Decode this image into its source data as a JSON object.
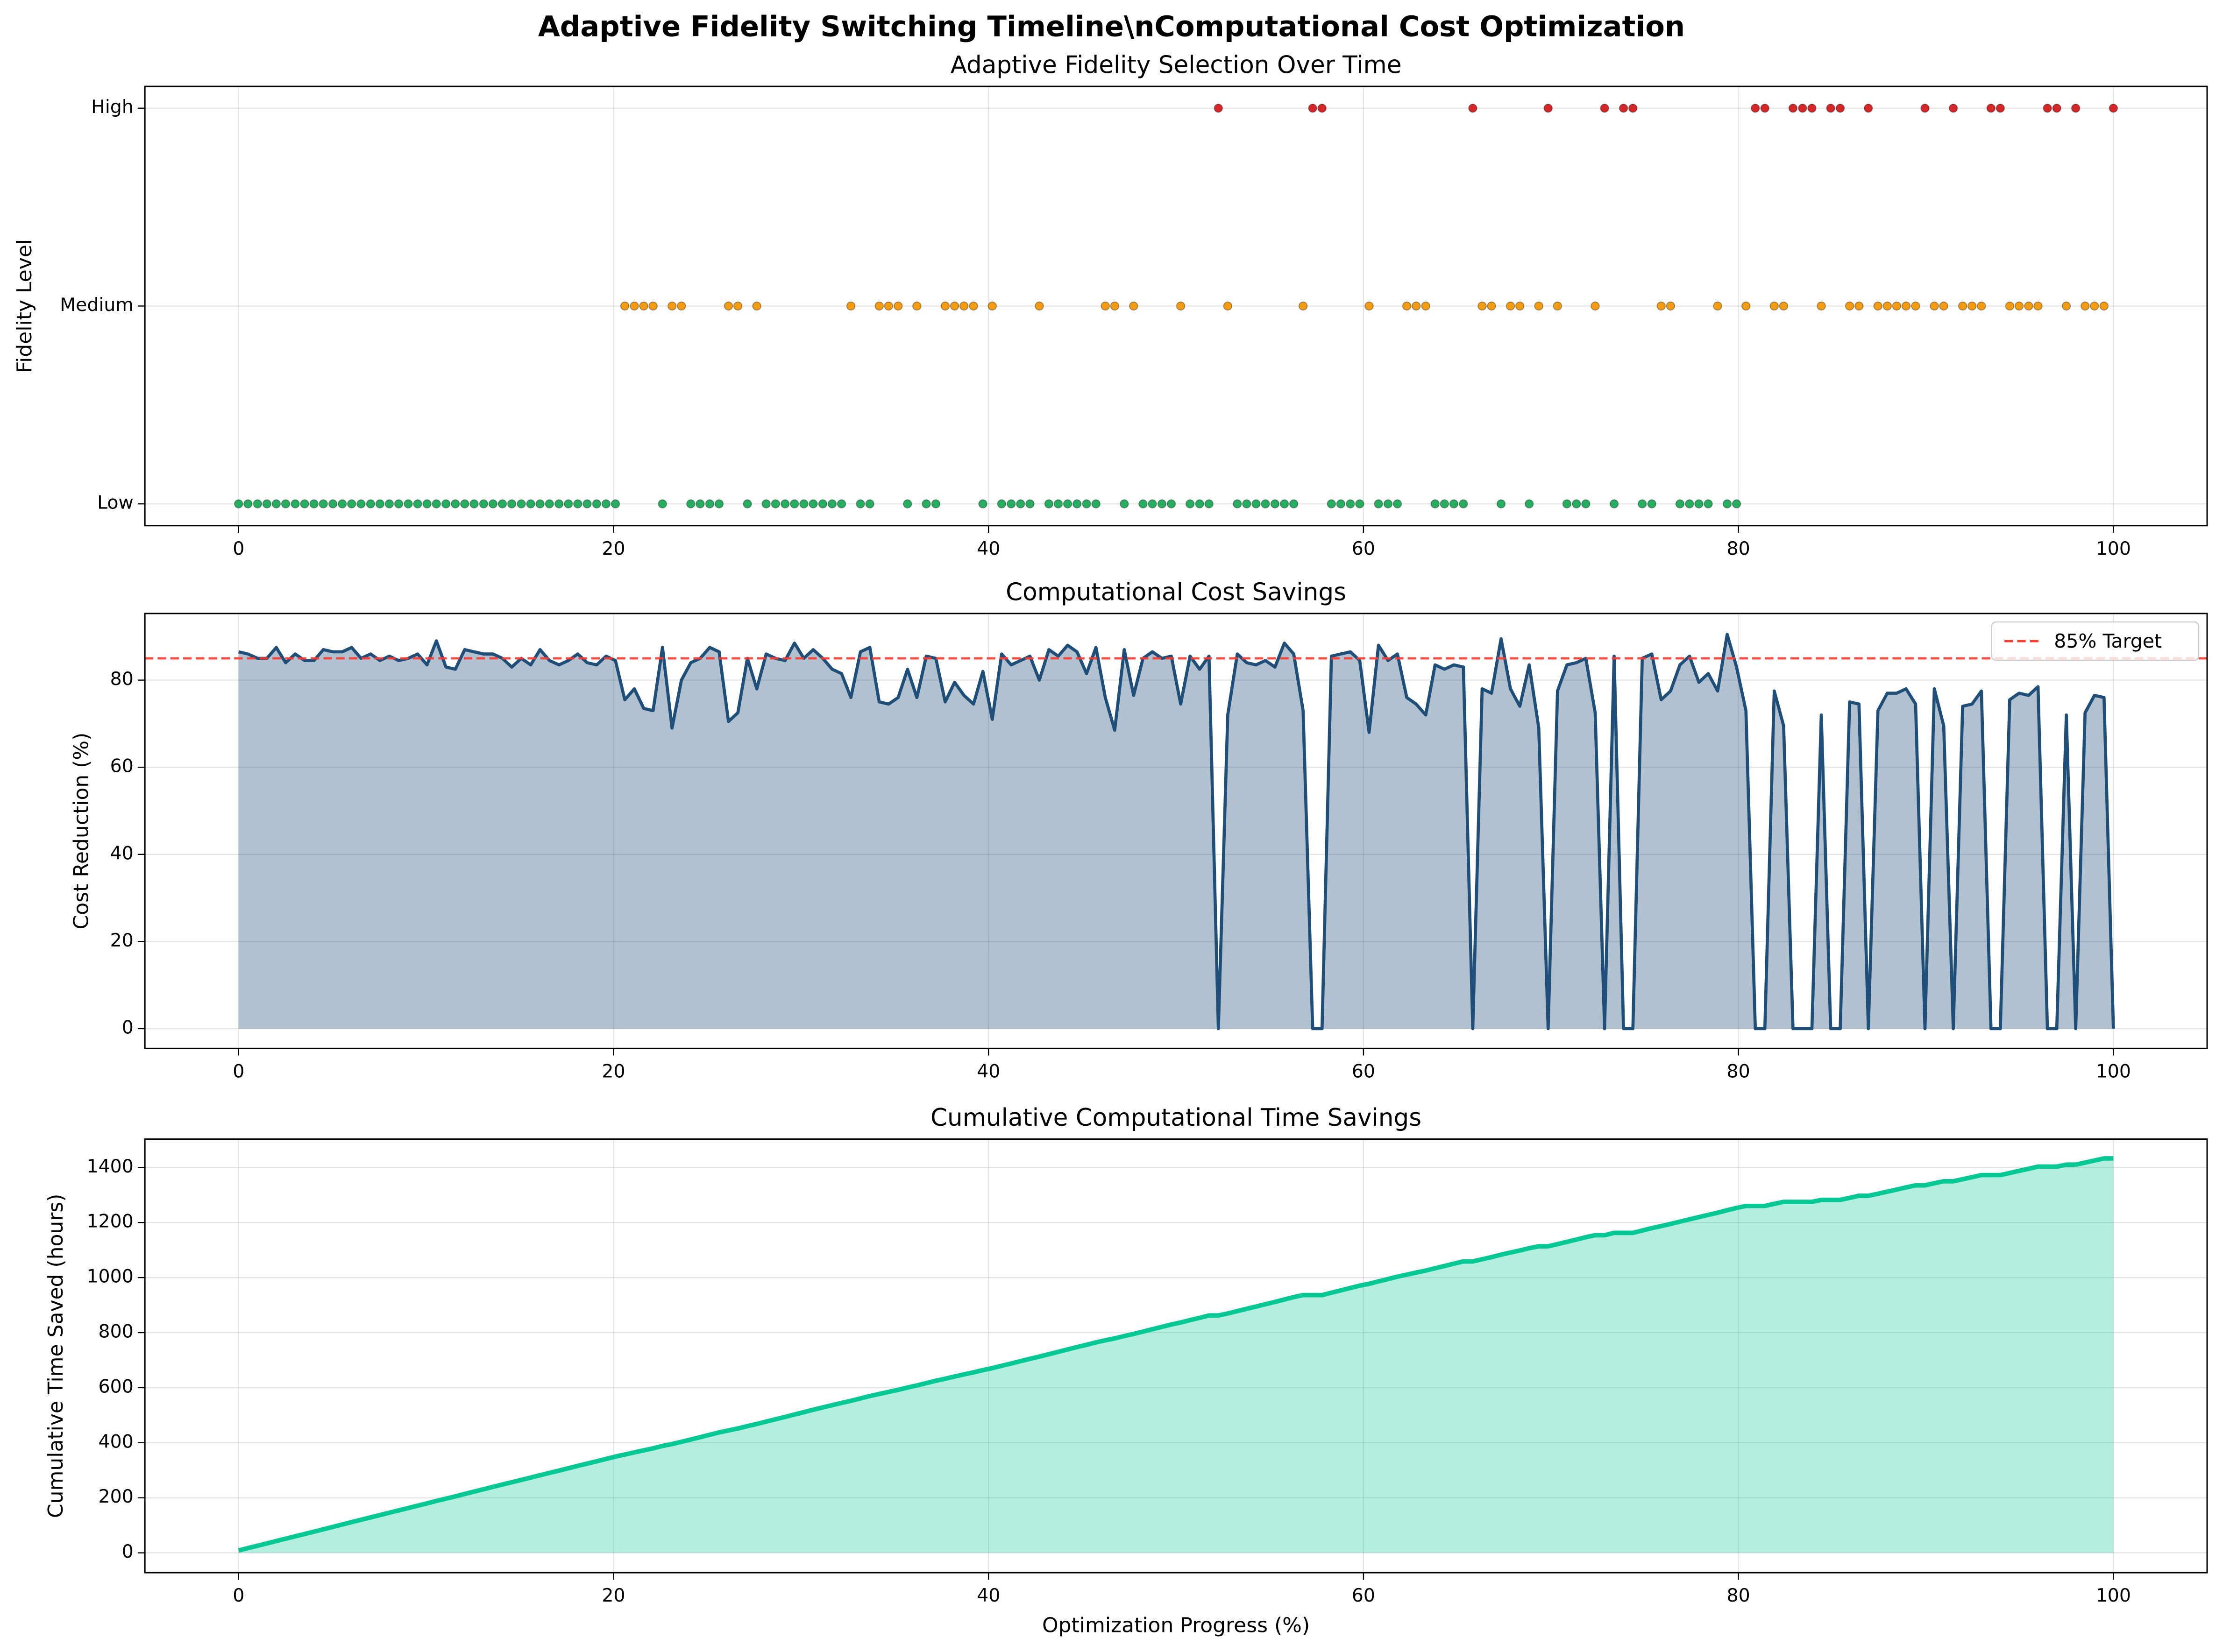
{
  "title": "Adaptive Fidelity Switching Timeline\\nComputational Cost Optimization",
  "chart_data": [
    {
      "type": "scatter",
      "title": "Adaptive Fidelity Selection Over Time",
      "ylabel": "Fidelity Level",
      "x": [
        0,
        0.5,
        1.01,
        1.51,
        2.01,
        2.51,
        3.02,
        3.52,
        4.02,
        4.52,
        5.03,
        5.53,
        6.03,
        6.53,
        7.04,
        7.54,
        8.04,
        8.54,
        9.05,
        9.55,
        10.05,
        10.55,
        11.06,
        11.56,
        12.06,
        12.56,
        13.07,
        13.57,
        14.07,
        14.57,
        15.08,
        15.58,
        16.08,
        16.58,
        17.09,
        17.59,
        18.09,
        18.59,
        19.1,
        19.6,
        20.1,
        20.6,
        21.11,
        21.61,
        22.11,
        22.61,
        23.12,
        23.62,
        24.12,
        24.62,
        25.13,
        25.63,
        26.13,
        26.63,
        27.14,
        27.64,
        28.14,
        28.64,
        29.15,
        29.65,
        30.15,
        30.65,
        31.16,
        31.66,
        32.16,
        32.66,
        33.17,
        33.67,
        34.17,
        34.67,
        35.18,
        35.68,
        36.18,
        36.68,
        37.19,
        37.69,
        38.19,
        38.69,
        39.2,
        39.7,
        40.2,
        40.7,
        41.21,
        41.71,
        42.21,
        42.71,
        43.22,
        43.72,
        44.22,
        44.72,
        45.23,
        45.73,
        46.23,
        46.73,
        47.24,
        47.74,
        48.24,
        48.74,
        49.25,
        49.75,
        50.25,
        50.75,
        51.26,
        51.76,
        52.26,
        52.76,
        53.27,
        53.77,
        54.27,
        54.77,
        55.28,
        55.78,
        56.28,
        56.78,
        57.29,
        57.79,
        58.29,
        58.79,
        59.3,
        59.8,
        60.3,
        60.8,
        61.31,
        61.81,
        62.31,
        62.81,
        63.32,
        63.82,
        64.32,
        64.82,
        65.33,
        65.83,
        66.33,
        66.83,
        67.34,
        67.84,
        68.34,
        68.84,
        69.35,
        69.85,
        70.35,
        70.85,
        71.36,
        71.86,
        72.36,
        72.86,
        73.37,
        73.87,
        74.37,
        74.87,
        75.38,
        75.88,
        76.38,
        76.88,
        77.39,
        77.89,
        78.39,
        78.89,
        79.4,
        79.9,
        80.4,
        80.9,
        81.41,
        81.91,
        82.41,
        82.91,
        83.42,
        83.92,
        84.42,
        84.92,
        85.43,
        85.93,
        86.43,
        86.93,
        87.44,
        87.94,
        88.44,
        88.94,
        89.45,
        89.95,
        90.45,
        90.95,
        91.46,
        91.96,
        92.46,
        92.96,
        93.47,
        93.97,
        94.47,
        94.97,
        95.48,
        95.98,
        96.48,
        96.98,
        97.49,
        97.99,
        98.49,
        98.99,
        99.5,
        100
      ],
      "values": [
        0,
        0,
        0,
        0,
        0,
        0,
        0,
        0,
        0,
        0,
        0,
        0,
        0,
        0,
        0,
        0,
        0,
        0,
        0,
        0,
        0,
        0,
        0,
        0,
        0,
        0,
        0,
        0,
        0,
        0,
        0,
        0,
        0,
        0,
        0,
        0,
        0,
        0,
        0,
        0,
        0,
        1,
        1,
        1,
        1,
        0,
        1,
        1,
        0,
        0,
        0,
        0,
        1,
        1,
        0,
        1,
        0,
        0,
        0,
        0,
        0,
        0,
        0,
        0,
        0,
        1,
        0,
        0,
        1,
        1,
        1,
        0,
        1,
        0,
        0,
        1,
        1,
        1,
        1,
        0,
        1,
        0,
        0,
        0,
        0,
        1,
        0,
        0,
        0,
        0,
        0,
        0,
        1,
        1,
        0,
        1,
        0,
        0,
        0,
        0,
        1,
        0,
        0,
        0,
        2,
        1,
        0,
        0,
        0,
        0,
        0,
        0,
        0,
        1,
        2,
        2,
        0,
        0,
        0,
        0,
        1,
        0,
        0,
        0,
        1,
        1,
        1,
        0,
        0,
        0,
        0,
        2,
        1,
        1,
        0,
        1,
        1,
        0,
        1,
        2,
        1,
        0,
        0,
        0,
        1,
        2,
        0,
        2,
        2,
        0,
        0,
        1,
        1,
        0,
        0,
        0,
        0,
        1,
        0,
        0,
        1,
        2,
        2,
        1,
        1,
        2,
        2,
        2,
        1,
        2,
        2,
        1,
        1,
        2,
        1,
        1,
        1,
        1,
        1,
        2,
        1,
        1,
        2,
        1,
        1,
        1,
        2,
        2,
        1,
        1,
        1,
        1,
        2,
        2,
        1,
        2,
        1,
        1,
        1,
        2
      ],
      "level_colors": [
        "#27ae60",
        "#f39c12",
        "#d62728"
      ],
      "xlim": [
        -5,
        105
      ],
      "xticks": [
        0,
        20,
        40,
        60,
        80,
        100
      ],
      "ylim": [
        -0.11,
        2.11
      ],
      "yticks": [
        {
          "value": 0,
          "label": "Low"
        },
        {
          "value": 1,
          "label": "Medium"
        },
        {
          "value": 2,
          "label": "High"
        }
      ],
      "grid": true
    },
    {
      "type": "area",
      "title": "Computational Cost Savings",
      "ylabel": "Cost Reduction (%)",
      "x": [
        0,
        0.5,
        1.01,
        1.51,
        2.01,
        2.51,
        3.02,
        3.52,
        4.02,
        4.52,
        5.03,
        5.53,
        6.03,
        6.53,
        7.04,
        7.54,
        8.04,
        8.54,
        9.05,
        9.55,
        10.05,
        10.55,
        11.06,
        11.56,
        12.06,
        12.56,
        13.07,
        13.57,
        14.07,
        14.57,
        15.08,
        15.58,
        16.08,
        16.58,
        17.09,
        17.59,
        18.09,
        18.59,
        19.1,
        19.6,
        20.1,
        20.6,
        21.11,
        21.61,
        22.11,
        22.61,
        23.12,
        23.62,
        24.12,
        24.62,
        25.13,
        25.63,
        26.13,
        26.63,
        27.14,
        27.64,
        28.14,
        28.64,
        29.15,
        29.65,
        30.15,
        30.65,
        31.16,
        31.66,
        32.16,
        32.66,
        33.17,
        33.67,
        34.17,
        34.67,
        35.18,
        35.68,
        36.18,
        36.68,
        37.19,
        37.69,
        38.19,
        38.69,
        39.2,
        39.7,
        40.2,
        40.7,
        41.21,
        41.71,
        42.21,
        42.71,
        43.22,
        43.72,
        44.22,
        44.72,
        45.23,
        45.73,
        46.23,
        46.73,
        47.24,
        47.74,
        48.24,
        48.74,
        49.25,
        49.75,
        50.25,
        50.75,
        51.26,
        51.76,
        52.26,
        52.76,
        53.27,
        53.77,
        54.27,
        54.77,
        55.28,
        55.78,
        56.28,
        56.78,
        57.29,
        57.79,
        58.29,
        58.79,
        59.3,
        59.8,
        60.3,
        60.8,
        61.31,
        61.81,
        62.31,
        62.81,
        63.32,
        63.82,
        64.32,
        64.82,
        65.33,
        65.83,
        66.33,
        66.83,
        67.34,
        67.84,
        68.34,
        68.84,
        69.35,
        69.85,
        70.35,
        70.85,
        71.36,
        71.86,
        72.36,
        72.86,
        73.37,
        73.87,
        74.37,
        74.87,
        75.38,
        75.88,
        76.38,
        76.88,
        77.39,
        77.89,
        78.39,
        78.89,
        79.4,
        79.9,
        80.4,
        80.9,
        81.41,
        81.91,
        82.41,
        82.91,
        83.42,
        83.92,
        84.42,
        84.92,
        85.43,
        85.93,
        86.43,
        86.93,
        87.44,
        87.94,
        88.44,
        88.94,
        89.45,
        89.95,
        90.45,
        90.95,
        91.46,
        91.96,
        92.46,
        92.96,
        93.47,
        93.97,
        94.47,
        94.97,
        95.48,
        95.98,
        96.48,
        96.98,
        97.49,
        97.99,
        98.49,
        98.99,
        99.5,
        100
      ],
      "values": [
        86.5,
        86,
        85,
        85,
        87.5,
        84,
        86,
        84.5,
        84.5,
        87,
        86.5,
        86.5,
        87.5,
        85,
        86,
        84.5,
        85.5,
        84.5,
        85,
        86,
        83.5,
        89,
        83,
        82.5,
        87,
        86.5,
        86,
        86,
        85,
        83,
        85,
        83.5,
        87,
        84.5,
        83.5,
        84.5,
        86,
        84,
        83.5,
        85.5,
        84.5,
        75.5,
        78,
        73.5,
        73,
        87.5,
        69,
        80,
        84,
        85,
        87.5,
        86.5,
        70.5,
        72.5,
        85,
        78,
        86,
        85,
        84.5,
        88.5,
        85,
        87,
        85,
        82.5,
        81.5,
        76,
        86.5,
        87.5,
        75,
        74.5,
        76,
        82.5,
        76,
        85.5,
        85,
        75,
        79.5,
        76.5,
        74.5,
        82,
        71,
        86,
        83.5,
        84.5,
        85.5,
        80,
        87,
        85.5,
        88,
        86.5,
        81.5,
        87.5,
        76,
        68.5,
        87,
        76.5,
        85,
        86.5,
        85,
        85.5,
        74.5,
        85.5,
        82.5,
        85.5,
        0,
        72,
        86,
        84,
        83.5,
        84.5,
        83,
        88.5,
        86,
        73,
        0,
        0,
        85.5,
        86,
        86.5,
        84.5,
        68,
        88,
        84.5,
        86,
        76,
        74.5,
        72,
        83.5,
        82.5,
        83.5,
        83,
        0,
        78,
        77,
        89.5,
        78,
        74,
        83.5,
        69,
        0,
        77.5,
        83.5,
        84,
        85,
        72.5,
        0,
        85.5,
        0,
        0,
        85,
        86,
        75.5,
        77.5,
        83.5,
        85.5,
        79.5,
        81.5,
        77.5,
        90.5,
        83,
        73,
        0,
        0,
        77.5,
        69.5,
        0,
        0,
        0,
        72,
        0,
        0,
        75,
        74.5,
        0,
        73,
        77,
        77,
        78,
        74.5,
        0,
        78,
        69.5,
        0,
        74,
        74.5,
        77.5,
        0,
        0,
        75.5,
        77,
        76.5,
        78.5,
        0,
        0,
        72,
        0,
        72.5,
        76.5,
        76,
        0
      ],
      "color": "#1f4e79",
      "target": 85,
      "target_label": "85% Target",
      "target_color": "#ff3b30",
      "legend": "upper right",
      "xlim": [
        -5,
        105
      ],
      "xticks": [
        0,
        20,
        40,
        60,
        80,
        100
      ],
      "ylim": [
        -4.55,
        95.3
      ],
      "yticks": [
        0,
        20,
        40,
        60,
        80
      ],
      "grid": true
    },
    {
      "type": "area",
      "title": "Cumulative Computational Time Savings",
      "xlabel": "Optimization Progress (%)",
      "ylabel": "Cumulative Time Saved (hours)",
      "x": [
        0,
        0.5,
        1.01,
        1.51,
        2.01,
        2.51,
        3.02,
        3.52,
        4.02,
        4.52,
        5.03,
        5.53,
        6.03,
        6.53,
        7.04,
        7.54,
        8.04,
        8.54,
        9.05,
        9.55,
        10.05,
        10.55,
        11.06,
        11.56,
        12.06,
        12.56,
        13.07,
        13.57,
        14.07,
        14.57,
        15.08,
        15.58,
        16.08,
        16.58,
        17.09,
        17.59,
        18.09,
        18.59,
        19.1,
        19.6,
        20.1,
        20.6,
        21.11,
        21.61,
        22.11,
        22.61,
        23.12,
        23.62,
        24.12,
        24.62,
        25.13,
        25.63,
        26.13,
        26.63,
        27.14,
        27.64,
        28.14,
        28.64,
        29.15,
        29.65,
        30.15,
        30.65,
        31.16,
        31.66,
        32.16,
        32.66,
        33.17,
        33.67,
        34.17,
        34.67,
        35.18,
        35.68,
        36.18,
        36.68,
        37.19,
        37.69,
        38.19,
        38.69,
        39.2,
        39.7,
        40.2,
        40.7,
        41.21,
        41.71,
        42.21,
        42.71,
        43.22,
        43.72,
        44.22,
        44.72,
        45.23,
        45.73,
        46.23,
        46.73,
        47.24,
        47.74,
        48.24,
        48.74,
        49.25,
        49.75,
        50.25,
        50.75,
        51.26,
        51.76,
        52.26,
        52.76,
        53.27,
        53.77,
        54.27,
        54.77,
        55.28,
        55.78,
        56.28,
        56.78,
        57.29,
        57.79,
        58.29,
        58.79,
        59.3,
        59.8,
        60.3,
        60.8,
        61.31,
        61.81,
        62.31,
        62.81,
        63.32,
        63.82,
        64.32,
        64.82,
        65.33,
        65.83,
        66.33,
        66.83,
        67.34,
        67.84,
        68.34,
        68.84,
        69.35,
        69.85,
        70.35,
        70.85,
        71.36,
        71.86,
        72.36,
        72.86,
        73.37,
        73.87,
        74.37,
        74.87,
        75.38,
        75.88,
        76.38,
        76.88,
        77.39,
        77.89,
        78.39,
        78.89,
        79.4,
        79.9,
        80.4,
        80.9,
        81.41,
        81.91,
        82.41,
        82.91,
        83.42,
        83.92,
        84.42,
        84.92,
        85.43,
        85.93,
        86.43,
        86.93,
        87.44,
        87.94,
        88.44,
        88.94,
        89.45,
        89.95,
        90.45,
        90.95,
        91.46,
        91.96,
        92.46,
        92.96,
        93.47,
        93.97,
        94.47,
        94.97,
        95.48,
        95.98,
        96.48,
        96.98,
        97.49,
        97.99,
        98.49,
        98.99,
        99.5,
        100
      ],
      "values": [
        8.65,
        17.25,
        25.75,
        34.25,
        43,
        51.4,
        60,
        68.45,
        76.9,
        85.6,
        94.25,
        102.9,
        111.65,
        120.15,
        128.75,
        137.2,
        145.75,
        154.2,
        162.7,
        171.3,
        179.65,
        188.55,
        196.85,
        205.1,
        213.8,
        222.45,
        231.05,
        239.65,
        248.15,
        256.45,
        264.95,
        273.3,
        282,
        290.45,
        298.8,
        307.25,
        315.85,
        324.25,
        332.6,
        341.15,
        349.6,
        357.15,
        364.95,
        372.3,
        379.6,
        388.35,
        395.25,
        403.25,
        411.65,
        420.15,
        428.9,
        437.55,
        444.6,
        451.85,
        460.35,
        468.15,
        476.75,
        485.25,
        493.7,
        502.55,
        511.05,
        519.75,
        528.25,
        536.5,
        544.65,
        552.25,
        560.9,
        569.65,
        577.15,
        584.6,
        592.2,
        600.45,
        608.05,
        616.6,
        625.1,
        632.6,
        640.55,
        648.2,
        655.65,
        663.85,
        670.95,
        679.55,
        687.9,
        696.35,
        704.9,
        712.9,
        721.6,
        730.15,
        738.95,
        747.6,
        755.75,
        764.5,
        772.1,
        778.95,
        787.65,
        795.3,
        803.8,
        812.45,
        820.95,
        829.5,
        836.95,
        845.5,
        853.75,
        862.3,
        862.3,
        869.5,
        878.1,
        886.5,
        894.85,
        903.3,
        911.6,
        920.45,
        929.05,
        936.35,
        936.35,
        936.35,
        944.9,
        953.5,
        962.15,
        970.6,
        977.4,
        986.2,
        994.65,
        1003.25,
        1010.85,
        1018.3,
        1025.5,
        1033.85,
        1042.1,
        1050.45,
        1058.75,
        1058.75,
        1066.55,
        1074.25,
        1083.2,
        1091,
        1098.4,
        1106.75,
        1113.65,
        1113.65,
        1121.4,
        1129.75,
        1138.15,
        1146.65,
        1153.9,
        1153.9,
        1162.45,
        1162.45,
        1162.45,
        1170.95,
        1179.55,
        1187.1,
        1194.85,
        1203.2,
        1211.75,
        1219.7,
        1227.85,
        1235.6,
        1244.65,
        1252.95,
        1260.25,
        1260.25,
        1260.25,
        1268,
        1274.95,
        1274.95,
        1274.95,
        1274.95,
        1282.15,
        1282.15,
        1282.15,
        1289.65,
        1297.1,
        1297.1,
        1304.4,
        1312.1,
        1319.8,
        1327.6,
        1335.05,
        1335.05,
        1342.85,
        1349.8,
        1349.8,
        1357.2,
        1364.65,
        1372.4,
        1372.4,
        1372.4,
        1379.95,
        1387.65,
        1395.3,
        1403.15,
        1403.15,
        1403.15,
        1410.35,
        1410.35,
        1417.6,
        1425.25,
        1432.85,
        1432.85
      ],
      "color": "#06c895",
      "xlim": [
        -5,
        105
      ],
      "xticks": [
        0,
        20,
        40,
        60,
        80,
        100
      ],
      "ylim": [
        -72,
        1503
      ],
      "yticks": [
        0,
        200,
        400,
        600,
        800,
        1000,
        1200,
        1400
      ],
      "grid": true
    }
  ]
}
